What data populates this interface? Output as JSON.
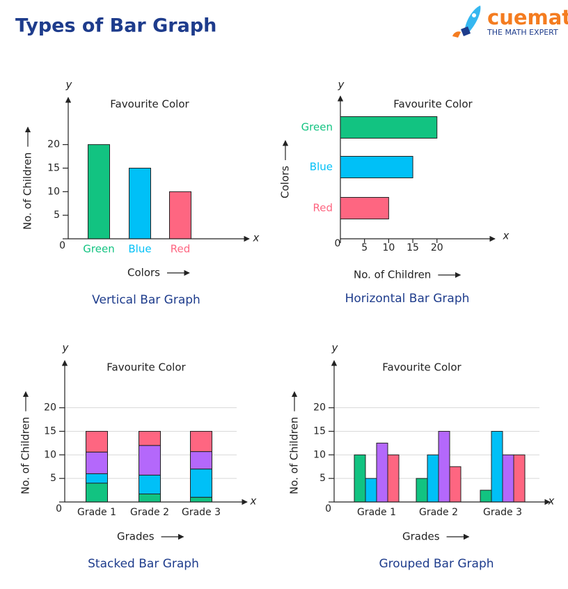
{
  "header": {
    "title": "Types of Bar Graph",
    "logo": "cuemath",
    "tagline": "THE MATH EXPERT"
  },
  "chart_data": [
    {
      "type": "bar",
      "title": "Favourite Color",
      "caption": "Vertical Bar Graph",
      "x_label": "Colors",
      "y_label": "No. of Children",
      "x_symbol": "x",
      "y_symbol": "y",
      "categories": [
        "Green",
        "Blue",
        "Red"
      ],
      "values": [
        20,
        15,
        10
      ],
      "colors": [
        "#12c381",
        "#00c0f7",
        "#fe6681"
      ],
      "ylim": [
        0,
        30
      ],
      "yticks": [
        0,
        5,
        10,
        15,
        20
      ],
      "grid": false
    },
    {
      "type": "barh",
      "title": "Favourite Color",
      "caption": "Horizontal Bar Graph",
      "x_label": "No. of Children",
      "y_label": "Colors",
      "x_symbol": "x",
      "y_symbol": "y",
      "categories": [
        "Green",
        "Blue",
        "Red"
      ],
      "values": [
        20,
        15,
        10
      ],
      "colors": [
        "#12c381",
        "#00c0f7",
        "#fe6681"
      ],
      "xlim": [
        0,
        32
      ],
      "xticks": [
        0,
        5,
        10,
        15,
        20
      ],
      "grid": false
    },
    {
      "type": "stacked",
      "title": "Favourite Color",
      "caption": "Stacked Bar Graph",
      "x_label": "Grades",
      "y_label": "No. of Children",
      "x_symbol": "x",
      "y_symbol": "y",
      "categories": [
        "Grade 1",
        "Grade 2",
        "Grade 3"
      ],
      "series": [
        {
          "color": "#12c381",
          "values": [
            4,
            1.7,
            1
          ]
        },
        {
          "color": "#00c0f7",
          "values": [
            2,
            4,
            6
          ]
        },
        {
          "color": "#b468fb",
          "values": [
            4.6,
            6.3,
            3.7
          ]
        },
        {
          "color": "#fe6681",
          "values": [
            4.4,
            3,
            4.3
          ]
        }
      ],
      "ylim": [
        0,
        30
      ],
      "yticks": [
        0,
        5,
        10,
        15,
        20
      ],
      "grid": true
    },
    {
      "type": "grouped",
      "title": "Favourite Color",
      "caption": "Grouped Bar Graph",
      "x_label": "Grades",
      "y_label": "No. of Children",
      "x_symbol": "x",
      "y_symbol": "y",
      "categories": [
        "Grade 1",
        "Grade 2",
        "Grade 3"
      ],
      "series": [
        {
          "color": "#12c381",
          "values": [
            10,
            5,
            2.5
          ]
        },
        {
          "color": "#00c0f7",
          "values": [
            5,
            10,
            15
          ]
        },
        {
          "color": "#b468fb",
          "values": [
            12.5,
            15,
            10
          ]
        },
        {
          "color": "#fe6681",
          "values": [
            10,
            7.5,
            10
          ]
        }
      ],
      "ylim": [
        0,
        30
      ],
      "yticks": [
        0,
        5,
        10,
        15,
        20
      ],
      "grid": true
    }
  ]
}
